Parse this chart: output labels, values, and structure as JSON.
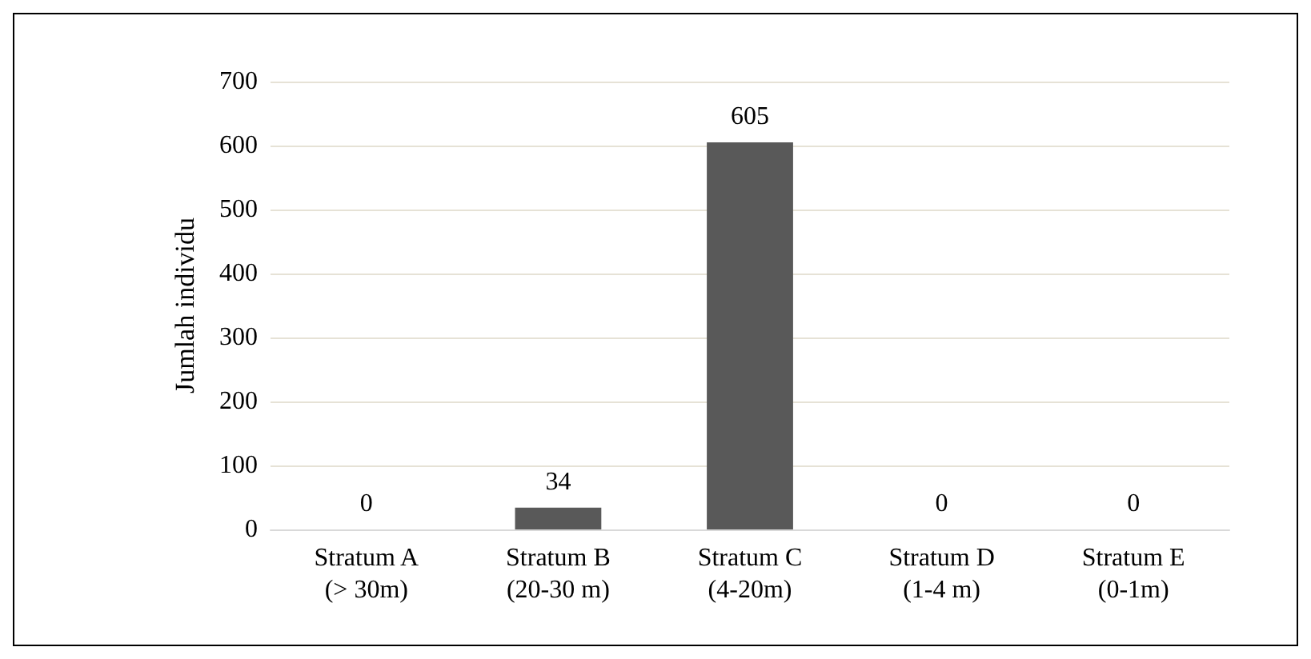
{
  "chart_data": {
    "type": "bar",
    "ylabel": "Jumlah individu",
    "categories": [
      "Stratum A\n(> 30m)",
      "Stratum B\n(20-30 m)",
      "Stratum C\n(4-20m)",
      "Stratum D\n(1-4 m)",
      "Stratum E\n(0-1m)"
    ],
    "values": [
      0,
      34,
      605,
      0,
      0
    ],
    "color": "#595959",
    "ylim": [
      0,
      700
    ],
    "yticks": [
      0,
      100,
      200,
      300,
      400,
      500,
      600,
      700
    ],
    "grid": "y",
    "data_labels": true
  }
}
